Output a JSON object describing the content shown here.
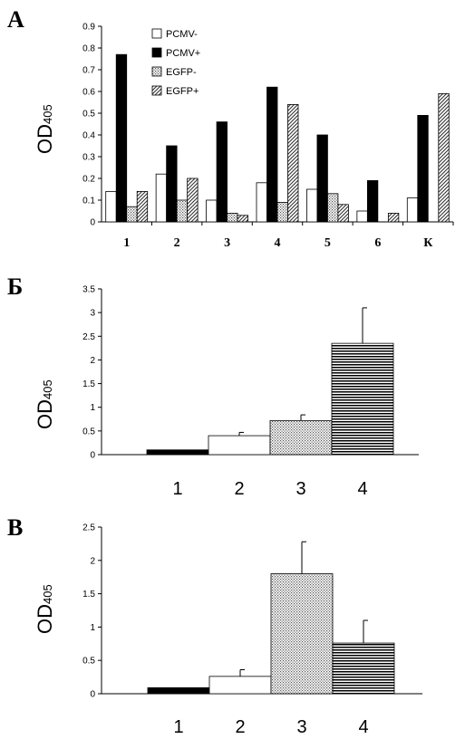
{
  "ylabel": {
    "main": "OD",
    "sub": "405"
  },
  "chart_data": [
    {
      "type": "bar",
      "panel": "А",
      "categories": [
        "1",
        "2",
        "3",
        "4",
        "5",
        "6",
        "К"
      ],
      "series": [
        {
          "name": "PCMV-",
          "values": [
            0.14,
            0.22,
            0.1,
            0.18,
            0.15,
            0.05,
            0.11
          ]
        },
        {
          "name": "PCMV+",
          "values": [
            0.77,
            0.35,
            0.46,
            0.62,
            0.4,
            0.19,
            0.49
          ]
        },
        {
          "name": "EGFP-",
          "values": [
            0.07,
            0.1,
            0.04,
            0.09,
            0.13,
            0.0,
            0.0
          ]
        },
        {
          "name": "EGFP+",
          "values": [
            0.14,
            0.2,
            0.03,
            0.54,
            0.08,
            0.04,
            0.59
          ]
        }
      ],
      "yticks": [
        "0",
        "0.1",
        "0.2",
        "0.3",
        "0.4",
        "0.5",
        "0.6",
        "0.7",
        "0.8",
        "0.9"
      ],
      "ylim": [
        0,
        0.9
      ],
      "legend_position": "top-left"
    },
    {
      "type": "bar",
      "panel": "Б",
      "categories": [
        "1",
        "2",
        "3",
        "4"
      ],
      "values": [
        0.1,
        0.4,
        0.72,
        2.35
      ],
      "errors": [
        0.0,
        0.07,
        0.12,
        0.75
      ],
      "yticks": [
        "0",
        "0.5",
        "1",
        "1.5",
        "2",
        "2.5",
        "3",
        "3.5"
      ],
      "ylim": [
        0,
        3.5
      ]
    },
    {
      "type": "bar",
      "panel": "В",
      "categories": [
        "1",
        "2",
        "3",
        "4"
      ],
      "values": [
        0.09,
        0.26,
        1.8,
        0.76
      ],
      "errors": [
        0.0,
        0.1,
        0.48,
        0.34
      ],
      "yticks": [
        "0",
        "0.5",
        "1",
        "1.5",
        "2",
        "2.5"
      ],
      "ylim": [
        0,
        2.5
      ]
    }
  ]
}
